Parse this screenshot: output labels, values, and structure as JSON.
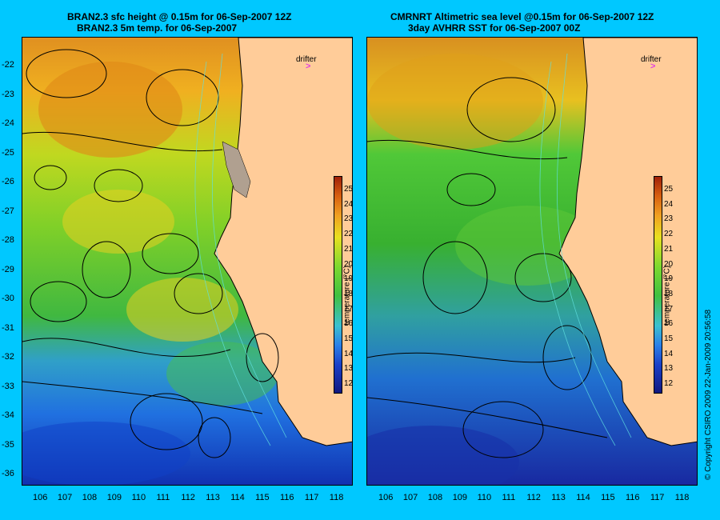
{
  "left_panel": {
    "title_line1": "BRAN2.3 sfc height @ 0.15m for 06-Sep-2007 12Z",
    "title_line2": "BRAN2.3 5m temp. for 06-Sep-2007"
  },
  "right_panel": {
    "title_line1": "CMRNRT Altimetric sea level  @0.15m  for 06-Sep-2007 12Z",
    "title_line2": "3day AVHRR SST for 06-Sep-2007 00Z"
  },
  "y_ticks": [
    "-22",
    "-23",
    "-24",
    "-25",
    "-26",
    "-27",
    "-28",
    "-29",
    "-30",
    "-31",
    "-32",
    "-33",
    "-34",
    "-35",
    "-36"
  ],
  "x_ticks": [
    "106",
    "107",
    "108",
    "109",
    "110",
    "111",
    "112",
    "113",
    "114",
    "115",
    "116",
    "117",
    "118"
  ],
  "colorbar": {
    "ticks": [
      "25",
      "24",
      "23",
      "22",
      "21",
      "20",
      "19",
      "18",
      "17",
      "16",
      "15",
      "14",
      "13",
      "12"
    ],
    "label": "temperature (°C)",
    "range": [
      11,
      26
    ]
  },
  "drifter_label": "drifter",
  "copyright": "© Copyright CSIRO 2009   22-Jan-2009 20:56:58",
  "colors": {
    "background": "#00c8ff",
    "land": "#ffcc99",
    "drifter": "#e040e0"
  }
}
